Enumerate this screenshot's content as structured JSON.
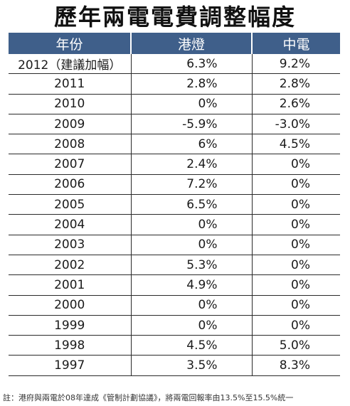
{
  "title": "歷年兩電電費調整幅度",
  "table": {
    "headers": [
      "年份",
      "港燈",
      "中電"
    ],
    "rows": [
      {
        "year": "2012（建議加幅）",
        "hk_electric": "6.3%",
        "clp": "9.2%"
      },
      {
        "year": "2011",
        "hk_electric": "2.8%",
        "clp": "2.8%"
      },
      {
        "year": "2010",
        "hk_electric": "0%",
        "clp": "2.6%"
      },
      {
        "year": "2009",
        "hk_electric": "-5.9%",
        "clp": "-3.0%"
      },
      {
        "year": "2008",
        "hk_electric": "6%",
        "clp": "4.5%"
      },
      {
        "year": "2007",
        "hk_electric": "2.4%",
        "clp": "0%"
      },
      {
        "year": "2006",
        "hk_electric": "7.2%",
        "clp": "0%"
      },
      {
        "year": "2005",
        "hk_electric": "6.5%",
        "clp": "0%"
      },
      {
        "year": "2004",
        "hk_electric": "0%",
        "clp": "0%"
      },
      {
        "year": "2003",
        "hk_electric": "0%",
        "clp": "0%"
      },
      {
        "year": "2002",
        "hk_electric": "5.3%",
        "clp": "0%"
      },
      {
        "year": "2001",
        "hk_electric": "4.9%",
        "clp": "0%"
      },
      {
        "year": "2000",
        "hk_electric": "0%",
        "clp": "0%"
      },
      {
        "year": "1999",
        "hk_electric": "0%",
        "clp": "0%"
      },
      {
        "year": "1998",
        "hk_electric": "4.5%",
        "clp": "5.0%"
      },
      {
        "year": "1997",
        "hk_electric": "3.5%",
        "clp": "8.3%"
      }
    ]
  },
  "footnote": "註：港府與兩電於08年達成《管制計劃協議》，將兩電回報率由13.5%至15.5%統一",
  "colors": {
    "header_bg": "#3f5f8a",
    "header_text": "#ffffff"
  }
}
